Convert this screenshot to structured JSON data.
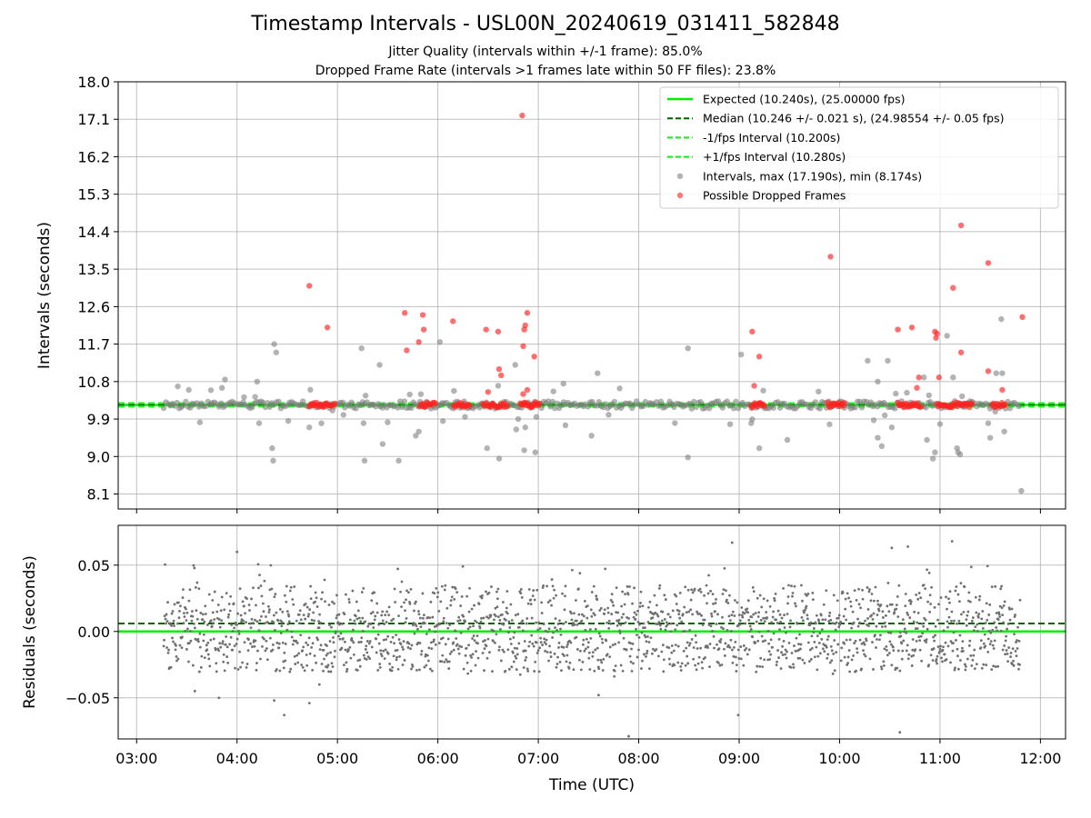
{
  "chart_data": {
    "title": "Timestamp Intervals - USL00N_20240619_031411_582848",
    "subtitle_lines": [
      "Jitter Quality (intervals within +/-1 frame): 85.0%",
      "Dropped Frame Rate (intervals >1 frames late within 50 FF files): 23.8%"
    ],
    "xlabel": "Time (UTC)",
    "x_tick_labels": [
      "03:00",
      "04:00",
      "05:00",
      "06:00",
      "07:00",
      "08:00",
      "09:00",
      "10:00",
      "11:00",
      "12:00"
    ],
    "grid": true,
    "legend_position": "top-right",
    "colors": {
      "expected": "#00ee00",
      "median": "#006400",
      "interval_band": "#22ee22",
      "intervals": "#808080",
      "dropped": "#ff2222",
      "residuals": "#707070"
    },
    "top_panel": {
      "type": "scatter",
      "ylabel": "Intervals (seconds)",
      "y_tick_labels": [
        "18.0",
        "17.1",
        "16.2",
        "15.3",
        "14.4",
        "13.5",
        "12.6",
        "11.7",
        "10.8",
        "9.9",
        "9.0",
        "8.1"
      ],
      "ylim": [
        7.74,
        18.0
      ],
      "xlim": [
        "02:49",
        "12:15"
      ],
      "reference_lines": [
        {
          "name": "Expected (10.240s), (25.00000 fps)",
          "y": 10.24,
          "style": "solid"
        },
        {
          "name": "Median (10.246 +/- 0.021 s), (24.98554 +/- 0.05 fps)",
          "y": 10.246,
          "style": "dashed"
        },
        {
          "name": "-1/fps Interval (10.200s)",
          "y": 10.2,
          "style": "dashed"
        },
        {
          "name": "+1/fps Interval (10.280s)",
          "y": 10.28,
          "style": "dashed"
        }
      ],
      "series": [
        {
          "name": "Intervals, max (17.190s), min (8.174s)",
          "x_hours": [
            3.88,
            4.2,
            4.22,
            4.37,
            4.39,
            4.35,
            4.36,
            4.72,
            5.24,
            5.26,
            5.27,
            5.42,
            5.45,
            5.61,
            5.78,
            5.81,
            6.02,
            6.49,
            6.61,
            6.77,
            6.78,
            6.8,
            6.86,
            6.87,
            6.97,
            6.98,
            7.25,
            7.27,
            7.53,
            7.59,
            8.49,
            8.49,
            9.02,
            9.12,
            9.2,
            9.48,
            10.28,
            10.38,
            10.38,
            10.42,
            10.48,
            10.52,
            10.84,
            10.87,
            10.93,
            10.95,
            11.07,
            11.13,
            11.17,
            11.18,
            11.2,
            11.48,
            11.5,
            11.56,
            11.61,
            11.62,
            11.64
          ],
          "y": [
            10.85,
            10.8,
            9.8,
            11.7,
            11.5,
            9.2,
            8.9,
            9.7,
            11.6,
            9.8,
            8.9,
            11.2,
            9.3,
            8.9,
            9.5,
            9.6,
            11.75,
            9.2,
            8.95,
            11.2,
            9.65,
            9.9,
            9.15,
            9.7,
            9.1,
            9.95,
            10.75,
            9.75,
            9.5,
            11.0,
            11.6,
            8.98,
            11.45,
            9.8,
            9.2,
            9.4,
            11.3,
            9.45,
            10.8,
            9.25,
            11.3,
            9.7,
            10.9,
            9.4,
            8.95,
            9.1,
            11.9,
            10.9,
            9.2,
            9.1,
            9.05,
            9.8,
            9.45,
            11.0,
            12.3,
            11.0,
            9.6
          ]
        },
        {
          "name": "Possible Dropped Frames",
          "x_hours": [
            4.72,
            4.9,
            5.67,
            5.69,
            5.81,
            5.85,
            5.86,
            6.15,
            6.48,
            6.6,
            6.61,
            6.63,
            6.5,
            6.85,
            6.86,
            6.87,
            6.89,
            6.96,
            6.85,
            6.89,
            9.13,
            9.2,
            9.15,
            9.91,
            10.58,
            10.72,
            10.77,
            10.79,
            10.95,
            10.96,
            10.97,
            10.99,
            11.13,
            11.21,
            11.21,
            11.48,
            11.48,
            11.62,
            11.82
          ],
          "y": [
            13.1,
            12.1,
            12.45,
            11.55,
            11.75,
            12.4,
            12.05,
            12.25,
            12.05,
            12.0,
            11.1,
            10.95,
            10.55,
            11.65,
            12.05,
            12.15,
            12.45,
            11.4,
            10.5,
            10.6,
            12.0,
            11.4,
            10.7,
            13.8,
            12.05,
            12.1,
            10.65,
            10.9,
            12.0,
            11.85,
            11.95,
            10.9,
            13.05,
            14.55,
            11.5,
            13.65,
            11.05,
            10.6,
            12.35
          ]
        }
      ]
    },
    "bottom_panel": {
      "type": "scatter",
      "ylabel": "Residuals (seconds)",
      "y_tick_labels": [
        "0.05",
        "0.00",
        "−0.05"
      ],
      "ylim": [
        -0.081,
        0.08
      ],
      "xlim": [
        "02:49",
        "12:15"
      ],
      "reference_lines": [
        {
          "name": "Expected",
          "y": 0.0,
          "style": "solid"
        },
        {
          "name": "Median",
          "y": 0.006,
          "style": "dashed"
        }
      ],
      "series": [
        {
          "name": "Residuals",
          "x_range_hours": [
            3.27,
            11.8
          ],
          "typical_y_range": [
            -0.025,
            0.045
          ],
          "outliers_x_hours": [
            3.58,
            3.82,
            4.0,
            4.37,
            4.47,
            4.72,
            4.82,
            7.6,
            7.9,
            8.93,
            8.99,
            10.52,
            10.6,
            10.68,
            11.12
          ],
          "outliers_y": [
            -0.045,
            -0.05,
            0.06,
            -0.052,
            -0.063,
            -0.054,
            -0.04,
            -0.048,
            -0.079,
            0.067,
            -0.063,
            0.063,
            -0.076,
            0.064,
            0.068
          ]
        }
      ]
    }
  }
}
